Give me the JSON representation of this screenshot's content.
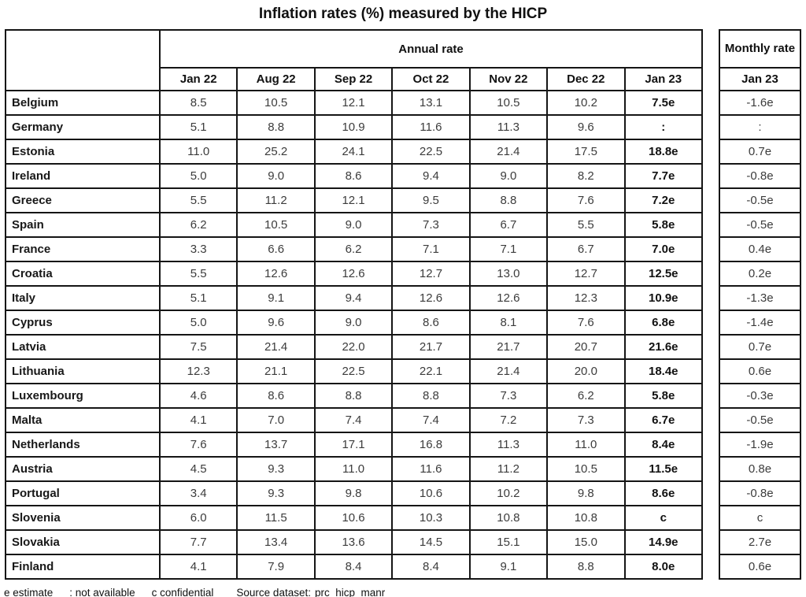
{
  "title": "Inflation rates (%) measured by the HICP",
  "table": {
    "annual_header": "Annual rate",
    "monthly_header": "Monthly rate",
    "annual_months": [
      "Jan 22",
      "Aug 22",
      "Sep 22",
      "Oct 22",
      "Nov 22",
      "Dec 22",
      "Jan 23"
    ],
    "monthly_month": "Jan 23",
    "rows": [
      {
        "country": "Belgium",
        "annual": [
          "8.5",
          "10.5",
          "12.1",
          "13.1",
          "10.5",
          "10.2",
          "7.5e"
        ],
        "monthly": "-1.6e"
      },
      {
        "country": "Germany",
        "annual": [
          "5.1",
          "8.8",
          "10.9",
          "11.6",
          "11.3",
          "9.6",
          ":"
        ],
        "monthly": ":"
      },
      {
        "country": "Estonia",
        "annual": [
          "11.0",
          "25.2",
          "24.1",
          "22.5",
          "21.4",
          "17.5",
          "18.8e"
        ],
        "monthly": "0.7e"
      },
      {
        "country": "Ireland",
        "annual": [
          "5.0",
          "9.0",
          "8.6",
          "9.4",
          "9.0",
          "8.2",
          "7.7e"
        ],
        "monthly": "-0.8e"
      },
      {
        "country": "Greece",
        "annual": [
          "5.5",
          "11.2",
          "12.1",
          "9.5",
          "8.8",
          "7.6",
          "7.2e"
        ],
        "monthly": "-0.5e"
      },
      {
        "country": "Spain",
        "annual": [
          "6.2",
          "10.5",
          "9.0",
          "7.3",
          "6.7",
          "5.5",
          "5.8e"
        ],
        "monthly": "-0.5e"
      },
      {
        "country": "France",
        "annual": [
          "3.3",
          "6.6",
          "6.2",
          "7.1",
          "7.1",
          "6.7",
          "7.0e"
        ],
        "monthly": "0.4e"
      },
      {
        "country": "Croatia",
        "annual": [
          "5.5",
          "12.6",
          "12.6",
          "12.7",
          "13.0",
          "12.7",
          "12.5e"
        ],
        "monthly": "0.2e"
      },
      {
        "country": "Italy",
        "annual": [
          "5.1",
          "9.1",
          "9.4",
          "12.6",
          "12.6",
          "12.3",
          "10.9e"
        ],
        "monthly": "-1.3e"
      },
      {
        "country": "Cyprus",
        "annual": [
          "5.0",
          "9.6",
          "9.0",
          "8.6",
          "8.1",
          "7.6",
          "6.8e"
        ],
        "monthly": "-1.4e"
      },
      {
        "country": "Latvia",
        "annual": [
          "7.5",
          "21.4",
          "22.0",
          "21.7",
          "21.7",
          "20.7",
          "21.6e"
        ],
        "monthly": "0.7e"
      },
      {
        "country": "Lithuania",
        "annual": [
          "12.3",
          "21.1",
          "22.5",
          "22.1",
          "21.4",
          "20.0",
          "18.4e"
        ],
        "monthly": "0.6e"
      },
      {
        "country": "Luxembourg",
        "annual": [
          "4.6",
          "8.6",
          "8.8",
          "8.8",
          "7.3",
          "6.2",
          "5.8e"
        ],
        "monthly": "-0.3e"
      },
      {
        "country": "Malta",
        "annual": [
          "4.1",
          "7.0",
          "7.4",
          "7.4",
          "7.2",
          "7.3",
          "6.7e"
        ],
        "monthly": "-0.5e"
      },
      {
        "country": "Netherlands",
        "annual": [
          "7.6",
          "13.7",
          "17.1",
          "16.8",
          "11.3",
          "11.0",
          "8.4e"
        ],
        "monthly": "-1.9e"
      },
      {
        "country": "Austria",
        "annual": [
          "4.5",
          "9.3",
          "11.0",
          "11.6",
          "11.2",
          "10.5",
          "11.5e"
        ],
        "monthly": "0.8e"
      },
      {
        "country": "Portugal",
        "annual": [
          "3.4",
          "9.3",
          "9.8",
          "10.6",
          "10.2",
          "9.8",
          "8.6e"
        ],
        "monthly": "-0.8e"
      },
      {
        "country": "Slovenia",
        "annual": [
          "6.0",
          "11.5",
          "10.6",
          "10.3",
          "10.8",
          "10.8",
          "c"
        ],
        "monthly": "c"
      },
      {
        "country": "Slovakia",
        "annual": [
          "7.7",
          "13.4",
          "13.6",
          "14.5",
          "15.1",
          "15.0",
          "14.9e"
        ],
        "monthly": "2.7e"
      },
      {
        "country": "Finland",
        "annual": [
          "4.1",
          "7.9",
          "8.4",
          "8.4",
          "9.1",
          "8.8",
          "8.0e"
        ],
        "monthly": "0.6e"
      }
    ]
  },
  "footnotes": {
    "estimate": "e estimate",
    "not_available": ": not available",
    "confidential": "c confidential",
    "source_label": "Source dataset:",
    "dataset_link": "prc_hicp_manr"
  }
}
